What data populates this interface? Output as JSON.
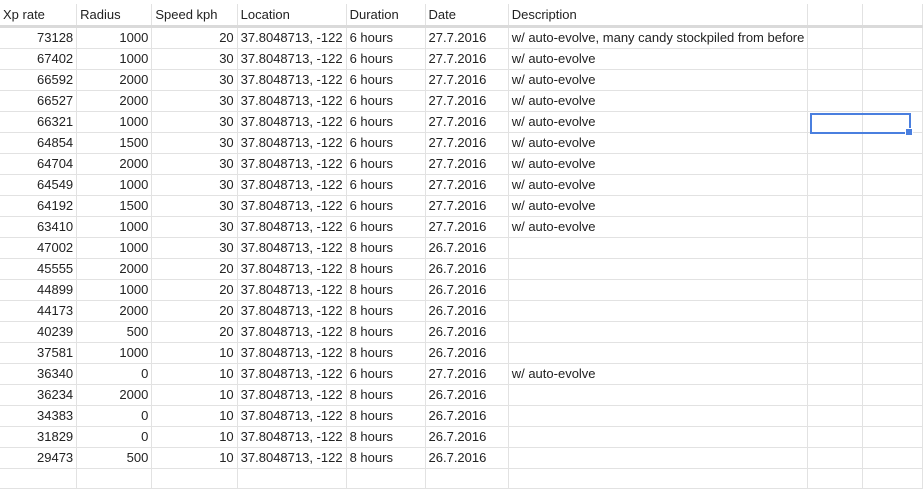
{
  "columns": [
    "Xp rate",
    "Radius",
    "Speed kph",
    "Location",
    "Duration",
    "Date",
    "Description",
    "",
    ""
  ],
  "rows": [
    {
      "xp": "73128",
      "radius": "1000",
      "speed": "20",
      "location": "37.8048713, -122",
      "duration": "6 hours",
      "date": "27.7.2016",
      "description": "w/ auto-evolve, many candy stockpiled from before"
    },
    {
      "xp": "67402",
      "radius": "1000",
      "speed": "30",
      "location": "37.8048713, -122",
      "duration": "6 hours",
      "date": "27.7.2016",
      "description": "w/ auto-evolve"
    },
    {
      "xp": "66592",
      "radius": "2000",
      "speed": "30",
      "location": "37.8048713, -122",
      "duration": "6 hours",
      "date": "27.7.2016",
      "description": "w/ auto-evolve"
    },
    {
      "xp": "66527",
      "radius": "2000",
      "speed": "30",
      "location": "37.8048713, -122",
      "duration": "6 hours",
      "date": "27.7.2016",
      "description": "w/ auto-evolve"
    },
    {
      "xp": "66321",
      "radius": "1000",
      "speed": "30",
      "location": "37.8048713, -122",
      "duration": "6 hours",
      "date": "27.7.2016",
      "description": "w/ auto-evolve"
    },
    {
      "xp": "64854",
      "radius": "1500",
      "speed": "30",
      "location": "37.8048713, -122",
      "duration": "6 hours",
      "date": "27.7.2016",
      "description": "w/ auto-evolve"
    },
    {
      "xp": "64704",
      "radius": "2000",
      "speed": "30",
      "location": "37.8048713, -122",
      "duration": "6 hours",
      "date": "27.7.2016",
      "description": "w/ auto-evolve"
    },
    {
      "xp": "64549",
      "radius": "1000",
      "speed": "30",
      "location": "37.8048713, -122",
      "duration": "6 hours",
      "date": "27.7.2016",
      "description": "w/ auto-evolve"
    },
    {
      "xp": "64192",
      "radius": "1500",
      "speed": "30",
      "location": "37.8048713, -122",
      "duration": "6 hours",
      "date": "27.7.2016",
      "description": "w/ auto-evolve"
    },
    {
      "xp": "63410",
      "radius": "1000",
      "speed": "30",
      "location": "37.8048713, -122",
      "duration": "6 hours",
      "date": "27.7.2016",
      "description": "w/ auto-evolve"
    },
    {
      "xp": "47002",
      "radius": "1000",
      "speed": "30",
      "location": "37.8048713, -122",
      "duration": "8 hours",
      "date": "26.7.2016",
      "description": ""
    },
    {
      "xp": "45555",
      "radius": "2000",
      "speed": "20",
      "location": "37.8048713, -122",
      "duration": "8 hours",
      "date": "26.7.2016",
      "description": ""
    },
    {
      "xp": "44899",
      "radius": "1000",
      "speed": "20",
      "location": "37.8048713, -122",
      "duration": "8 hours",
      "date": "26.7.2016",
      "description": ""
    },
    {
      "xp": "44173",
      "radius": "2000",
      "speed": "20",
      "location": "37.8048713, -122",
      "duration": "8 hours",
      "date": "26.7.2016",
      "description": ""
    },
    {
      "xp": "40239",
      "radius": "500",
      "speed": "20",
      "location": "37.8048713, -122",
      "duration": "8 hours",
      "date": "26.7.2016",
      "description": ""
    },
    {
      "xp": "37581",
      "radius": "1000",
      "speed": "10",
      "location": "37.8048713, -122",
      "duration": "8 hours",
      "date": "26.7.2016",
      "description": ""
    },
    {
      "xp": "36340",
      "radius": "0",
      "speed": "10",
      "location": "37.8048713, -122",
      "duration": "6 hours",
      "date": "27.7.2016",
      "description": "w/ auto-evolve"
    },
    {
      "xp": "36234",
      "radius": "2000",
      "speed": "10",
      "location": "37.8048713, -122",
      "duration": "8 hours",
      "date": "26.7.2016",
      "description": ""
    },
    {
      "xp": "34383",
      "radius": "0",
      "speed": "10",
      "location": "37.8048713, -122",
      "duration": "8 hours",
      "date": "26.7.2016",
      "description": ""
    },
    {
      "xp": "31829",
      "radius": "0",
      "speed": "10",
      "location": "37.8048713, -122",
      "duration": "8 hours",
      "date": "26.7.2016",
      "description": ""
    },
    {
      "xp": "29473",
      "radius": "500",
      "speed": "10",
      "location": "37.8048713, -122",
      "duration": "8 hours",
      "date": "26.7.2016",
      "description": ""
    },
    {
      "xp": "",
      "radius": "",
      "speed": "",
      "location": "",
      "duration": "",
      "date": "",
      "description": ""
    }
  ],
  "colors": {
    "gridline": "#e2e2e2",
    "header_divider": "#dadada",
    "selection": "#4a7fdf"
  }
}
